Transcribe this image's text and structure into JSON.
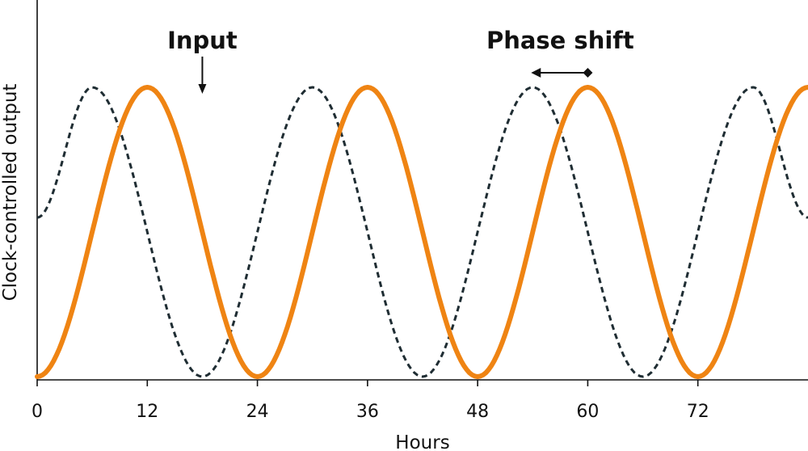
{
  "chart_data": {
    "type": "line",
    "xlabel": "Hours",
    "ylabel": "Clock-controlled output",
    "x_ticks": [
      0,
      12,
      24,
      36,
      48,
      60,
      72
    ],
    "xlim": [
      0,
      84
    ],
    "ylim": [
      0,
      1
    ],
    "grid": false,
    "series": [
      {
        "style": "dashed",
        "color": "#1f2d33",
        "period_hours": 24,
        "x": [
          0,
          6,
          18,
          30,
          42,
          54,
          66,
          78,
          84
        ],
        "y": [
          0.55,
          1.0,
          0.0,
          1.0,
          0.0,
          1.0,
          0.0,
          1.0,
          0.55
        ]
      },
      {
        "style": "solid",
        "color": "#ef8413",
        "period_hours": 24,
        "x": [
          0,
          12,
          24,
          36,
          48,
          60,
          72,
          84
        ],
        "y": [
          0.0,
          1.0,
          0.0,
          1.0,
          0.0,
          1.0,
          0.0,
          1.0
        ]
      }
    ],
    "annotations": [
      {
        "text": "Input",
        "at_x": 18,
        "marker": "down-arrow"
      },
      {
        "text": "Phase shift",
        "from_x": 54,
        "to_x": 60,
        "marker": "double-arrow"
      }
    ]
  }
}
